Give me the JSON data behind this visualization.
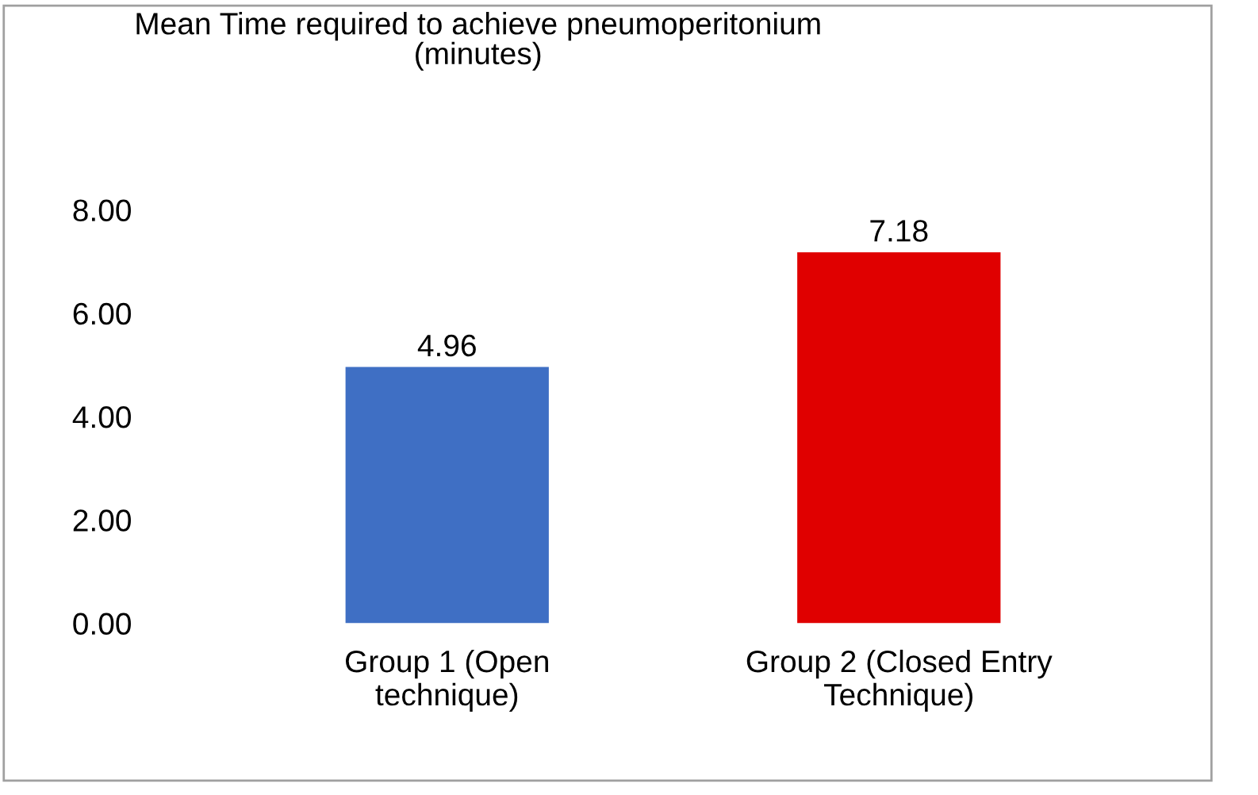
{
  "chart_data": {
    "type": "bar",
    "title": "Mean Time required to achieve pneumoperitonium\n(minutes)",
    "categories": [
      "Group 1 (Open\ntechnique)",
      "Group 2 (Closed Entry\nTechnique)"
    ],
    "values": [
      4.96,
      7.18
    ],
    "colors": [
      "#3f6fc4",
      "#e00000"
    ],
    "ylim": [
      0,
      8
    ],
    "yticks": [
      {
        "value": 0,
        "label": "0.00"
      },
      {
        "value": 2,
        "label": "2.00"
      },
      {
        "value": 4,
        "label": "4.00"
      },
      {
        "value": 6,
        "label": "6.00"
      },
      {
        "value": 8,
        "label": "8.00"
      }
    ],
    "data_labels": true,
    "grid": false,
    "legend": false
  }
}
